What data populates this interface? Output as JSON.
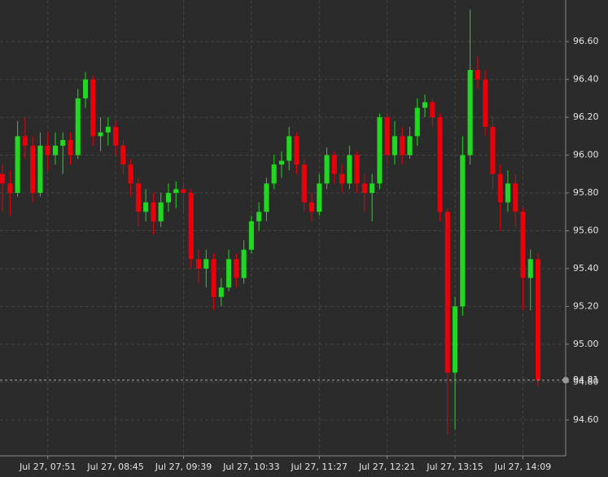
{
  "chart_data": {
    "type": "candlestick",
    "x": [
      435,
      441,
      447,
      453,
      459,
      465,
      471,
      477,
      483,
      489,
      495,
      501,
      507,
      513,
      519,
      525,
      531,
      537,
      543,
      549,
      555,
      561,
      567,
      573,
      579,
      585,
      591,
      597,
      603,
      609,
      615,
      621,
      627,
      633,
      639,
      645,
      651,
      657,
      663,
      669,
      675,
      681,
      687,
      693,
      699,
      705,
      711,
      717,
      723,
      729,
      735,
      741,
      747,
      753,
      759,
      765,
      771,
      777,
      783,
      789,
      795,
      801,
      807,
      813,
      819,
      825,
      831,
      837,
      843,
      849,
      855,
      861
    ],
    "open": [
      95.9,
      95.85,
      95.8,
      96.1,
      96.05,
      95.8,
      96.05,
      96.0,
      96.05,
      96.08,
      96.0,
      96.3,
      96.4,
      96.1,
      96.12,
      96.15,
      96.05,
      95.95,
      95.85,
      95.7,
      95.75,
      95.65,
      95.75,
      95.8,
      95.82,
      95.8,
      95.45,
      95.4,
      95.45,
      95.25,
      95.3,
      95.45,
      95.35,
      95.5,
      95.65,
      95.7,
      95.85,
      95.95,
      95.97,
      96.1,
      95.95,
      95.75,
      95.7,
      95.85,
      96.0,
      95.9,
      95.85,
      96.0,
      95.85,
      95.8,
      95.85,
      96.2,
      96.0,
      96.1,
      96.0,
      96.1,
      96.25,
      96.28,
      96.2,
      95.7,
      94.85,
      95.2,
      96.0,
      96.45,
      96.4,
      96.15,
      95.9,
      95.75,
      95.85,
      95.7,
      95.35,
      95.45
    ],
    "high": [
      95.95,
      95.92,
      96.18,
      96.2,
      96.1,
      96.12,
      96.12,
      96.12,
      96.12,
      96.12,
      96.35,
      96.44,
      96.42,
      96.2,
      96.2,
      96.18,
      96.08,
      95.98,
      95.88,
      95.82,
      95.8,
      95.8,
      95.85,
      95.86,
      95.85,
      95.82,
      95.5,
      95.5,
      95.48,
      95.35,
      95.5,
      95.48,
      95.55,
      95.68,
      95.75,
      95.88,
      96.0,
      96.02,
      96.15,
      96.12,
      95.98,
      95.8,
      95.9,
      96.04,
      96.02,
      95.95,
      96.05,
      96.02,
      95.9,
      95.9,
      96.22,
      96.22,
      96.18,
      96.15,
      96.15,
      96.3,
      96.32,
      96.3,
      96.22,
      95.72,
      95.25,
      96.1,
      96.77,
      96.52,
      96.45,
      96.2,
      95.95,
      95.92,
      95.9,
      95.72,
      95.5,
      95.48
    ],
    "low": [
      95.7,
      95.68,
      95.78,
      95.98,
      95.75,
      95.78,
      95.92,
      95.95,
      95.9,
      95.95,
      95.98,
      96.25,
      96.05,
      96.02,
      96.05,
      96.0,
      95.9,
      95.78,
      95.62,
      95.65,
      95.58,
      95.62,
      95.7,
      95.72,
      95.7,
      95.4,
      95.32,
      95.3,
      95.18,
      95.2,
      95.28,
      95.3,
      95.32,
      95.48,
      95.6,
      95.65,
      95.82,
      95.88,
      95.92,
      95.9,
      95.7,
      95.65,
      95.68,
      95.82,
      95.85,
      95.8,
      95.82,
      95.8,
      95.7,
      95.65,
      95.82,
      95.95,
      95.95,
      95.95,
      95.98,
      96.05,
      96.2,
      96.15,
      95.65,
      94.52,
      94.55,
      95.15,
      95.95,
      96.35,
      96.1,
      95.82,
      95.6,
      95.7,
      95.62,
      95.18,
      95.18,
      94.78
    ],
    "close": [
      95.85,
      95.8,
      96.1,
      96.05,
      95.8,
      96.05,
      96.0,
      96.05,
      96.08,
      96.0,
      96.3,
      96.4,
      96.1,
      96.12,
      96.15,
      96.05,
      95.95,
      95.85,
      95.7,
      95.75,
      95.65,
      95.75,
      95.8,
      95.82,
      95.8,
      95.45,
      95.4,
      95.45,
      95.25,
      95.3,
      95.45,
      95.35,
      95.5,
      95.65,
      95.7,
      95.85,
      95.95,
      95.97,
      96.1,
      95.95,
      95.75,
      95.7,
      95.85,
      96.0,
      95.9,
      95.85,
      96.0,
      95.85,
      95.8,
      95.85,
      96.2,
      96.0,
      96.1,
      96.0,
      96.1,
      96.25,
      96.28,
      96.2,
      95.7,
      94.85,
      95.2,
      96.0,
      96.45,
      96.4,
      96.15,
      95.9,
      95.75,
      95.85,
      95.7,
      95.35,
      95.45,
      94.81
    ],
    "up_color": "#1fd81f",
    "down_color": "#e8000b",
    "xlim": [
      433,
      883
    ],
    "ylim": [
      94.41,
      96.82
    ],
    "xticks": [
      {
        "value": 471,
        "label": "Jul 27, 07:51"
      },
      {
        "value": 525,
        "label": "Jul 27, 08:45"
      },
      {
        "value": 579,
        "label": "Jul 27, 09:39"
      },
      {
        "value": 633,
        "label": "Jul 27, 10:33"
      },
      {
        "value": 687,
        "label": "Jul 27, 11:27"
      },
      {
        "value": 741,
        "label": "Jul 27, 12:21"
      },
      {
        "value": 795,
        "label": "Jul 27, 13:15"
      },
      {
        "value": 849,
        "label": "Jul 27, 14:09"
      }
    ],
    "yticks": [
      {
        "value": 94.6,
        "label": "94.60"
      },
      {
        "value": 94.8,
        "label": "94.80"
      },
      {
        "value": 95.0,
        "label": "95.00"
      },
      {
        "value": 95.2,
        "label": "95.20"
      },
      {
        "value": 95.4,
        "label": "95.40"
      },
      {
        "value": 95.6,
        "label": "95.60"
      },
      {
        "value": 95.8,
        "label": "95.80"
      },
      {
        "value": 96.0,
        "label": "96.00"
      },
      {
        "value": 96.2,
        "label": "96.20"
      },
      {
        "value": 96.4,
        "label": "96.40"
      },
      {
        "value": 96.6,
        "label": "96.60"
      }
    ],
    "grid": true,
    "last_price": 94.81
  }
}
